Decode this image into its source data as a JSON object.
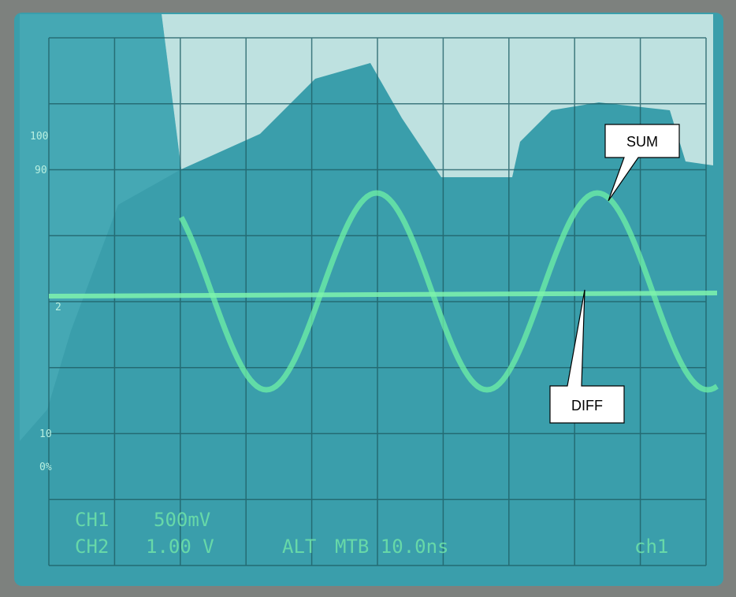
{
  "screen": {
    "percent_markers": [
      "100",
      "90",
      "10",
      "0%"
    ],
    "ground_marker": "2",
    "readout": {
      "line1": [
        "CH1",
        "500mV"
      ],
      "line2": [
        "CH2",
        "1.00 V",
        "ALT",
        "MTB 10.0ns",
        "ch1"
      ]
    }
  },
  "callouts": [
    {
      "label": "SUM"
    },
    {
      "label": "DIFF"
    }
  ]
}
